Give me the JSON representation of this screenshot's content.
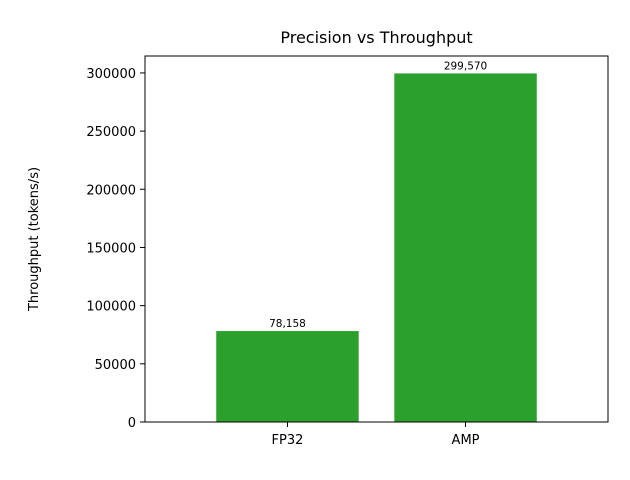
{
  "chart_data": {
    "type": "bar",
    "title": "Precision vs Throughput",
    "xlabel": "",
    "ylabel": "Throughput (tokens/s)",
    "categories": [
      "FP32",
      "AMP"
    ],
    "values": [
      78158,
      299570
    ],
    "data_labels": [
      "78,158",
      "299,570"
    ],
    "ylim": [
      0,
      314548.5
    ],
    "yticks": [
      0,
      50000,
      100000,
      150000,
      200000,
      250000,
      300000
    ],
    "bar_color": "#2ca02c",
    "grid": false,
    "legend": "none"
  }
}
